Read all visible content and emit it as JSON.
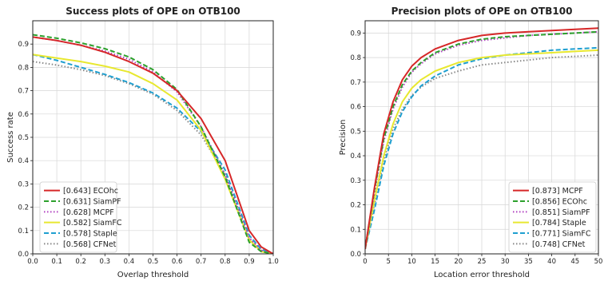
{
  "chart_data": [
    {
      "type": "line",
      "title": "Success plots of OPE on OTB100",
      "xlabel": "Overlap threshold",
      "ylabel": "Success rate",
      "xlim": [
        0,
        1
      ],
      "ylim": [
        0,
        1
      ],
      "xticks": [
        "0.0",
        "0.1",
        "0.2",
        "0.3",
        "0.4",
        "0.5",
        "0.6",
        "0.7",
        "0.8",
        "0.9",
        "1.0"
      ],
      "yticks": [
        "0.0",
        "0.1",
        "0.2",
        "0.3",
        "0.4",
        "0.5",
        "0.6",
        "0.7",
        "0.8",
        "0.9"
      ],
      "grid": true,
      "legend_position": "bottom-left",
      "x": [
        0,
        0.1,
        0.2,
        0.3,
        0.4,
        0.5,
        0.6,
        0.7,
        0.8,
        0.9,
        0.95,
        1.0
      ],
      "series": [
        {
          "name": "[0.643] ECOhc",
          "color": "#d62728",
          "dash": "solid",
          "values": [
            0.93,
            0.915,
            0.895,
            0.865,
            0.825,
            0.775,
            0.7,
            0.58,
            0.4,
            0.1,
            0.03,
            0.0
          ]
        },
        {
          "name": "[0.631] SiamPF",
          "color": "#2ca02c",
          "dash": "dashed",
          "values": [
            0.94,
            0.925,
            0.905,
            0.88,
            0.845,
            0.79,
            0.705,
            0.545,
            0.33,
            0.05,
            0.01,
            0.0
          ]
        },
        {
          "name": "[0.628] MCPF",
          "color": "#b040c0",
          "dash": "dotted",
          "values": [
            0.93,
            0.915,
            0.895,
            0.87,
            0.835,
            0.78,
            0.695,
            0.545,
            0.34,
            0.07,
            0.015,
            0.0
          ]
        },
        {
          "name": "[0.582] SiamFC",
          "color": "#e8e830",
          "dash": "solid",
          "values": [
            0.855,
            0.84,
            0.825,
            0.805,
            0.78,
            0.73,
            0.66,
            0.53,
            0.32,
            0.06,
            0.01,
            0.0
          ]
        },
        {
          "name": "[0.578] Staple",
          "color": "#1f9fd0",
          "dash": "dashed",
          "values": [
            0.855,
            0.83,
            0.8,
            0.77,
            0.735,
            0.69,
            0.625,
            0.525,
            0.36,
            0.08,
            0.02,
            0.0
          ]
        },
        {
          "name": "[0.568] CFNet",
          "color": "#888888",
          "dash": "dotted",
          "values": [
            0.825,
            0.81,
            0.79,
            0.765,
            0.73,
            0.685,
            0.615,
            0.51,
            0.34,
            0.065,
            0.015,
            0.0
          ]
        }
      ]
    },
    {
      "type": "line",
      "title": "Precision plots of OPE on OTB100",
      "xlabel": "Location error threshold",
      "ylabel": "Precision",
      "xlim": [
        0,
        50
      ],
      "ylim": [
        0,
        0.95
      ],
      "xticks": [
        "0",
        "5",
        "10",
        "15",
        "20",
        "25",
        "30",
        "35",
        "40",
        "45",
        "50"
      ],
      "yticks": [
        "0.0",
        "0.1",
        "0.2",
        "0.3",
        "0.4",
        "0.5",
        "0.6",
        "0.7",
        "0.8",
        "0.9"
      ],
      "grid": true,
      "legend_position": "bottom-right",
      "x": [
        0,
        2,
        4,
        6,
        8,
        10,
        12,
        15,
        20,
        25,
        30,
        35,
        40,
        45,
        50
      ],
      "series": [
        {
          "name": "[0.873] MCPF",
          "color": "#d62728",
          "dash": "solid",
          "values": [
            0.02,
            0.27,
            0.49,
            0.62,
            0.71,
            0.765,
            0.8,
            0.835,
            0.87,
            0.89,
            0.9,
            0.905,
            0.91,
            0.915,
            0.92
          ]
        },
        {
          "name": "[0.856] ECOhc",
          "color": "#2ca02c",
          "dash": "dashed",
          "values": [
            0.02,
            0.26,
            0.47,
            0.6,
            0.69,
            0.745,
            0.78,
            0.82,
            0.855,
            0.875,
            0.885,
            0.89,
            0.895,
            0.9,
            0.905
          ]
        },
        {
          "name": "[0.851] SiamPF",
          "color": "#b040c0",
          "dash": "dotted",
          "values": [
            0.02,
            0.25,
            0.46,
            0.59,
            0.68,
            0.74,
            0.775,
            0.815,
            0.85,
            0.87,
            0.88,
            0.89,
            0.895,
            0.9,
            0.905
          ]
        },
        {
          "name": "[0.784] Staple",
          "color": "#e8e830",
          "dash": "solid",
          "values": [
            0.02,
            0.22,
            0.4,
            0.53,
            0.62,
            0.675,
            0.71,
            0.745,
            0.78,
            0.8,
            0.81,
            0.815,
            0.82,
            0.825,
            0.83
          ]
        },
        {
          "name": "[0.771] SiamFC",
          "color": "#1f9fd0",
          "dash": "dashed",
          "values": [
            0.02,
            0.18,
            0.36,
            0.49,
            0.58,
            0.64,
            0.685,
            0.725,
            0.77,
            0.795,
            0.81,
            0.82,
            0.83,
            0.835,
            0.84
          ]
        },
        {
          "name": "[0.748] CFNet",
          "color": "#888888",
          "dash": "dotted",
          "values": [
            0.02,
            0.2,
            0.38,
            0.51,
            0.59,
            0.645,
            0.68,
            0.715,
            0.745,
            0.77,
            0.78,
            0.79,
            0.8,
            0.805,
            0.81
          ]
        }
      ]
    }
  ]
}
